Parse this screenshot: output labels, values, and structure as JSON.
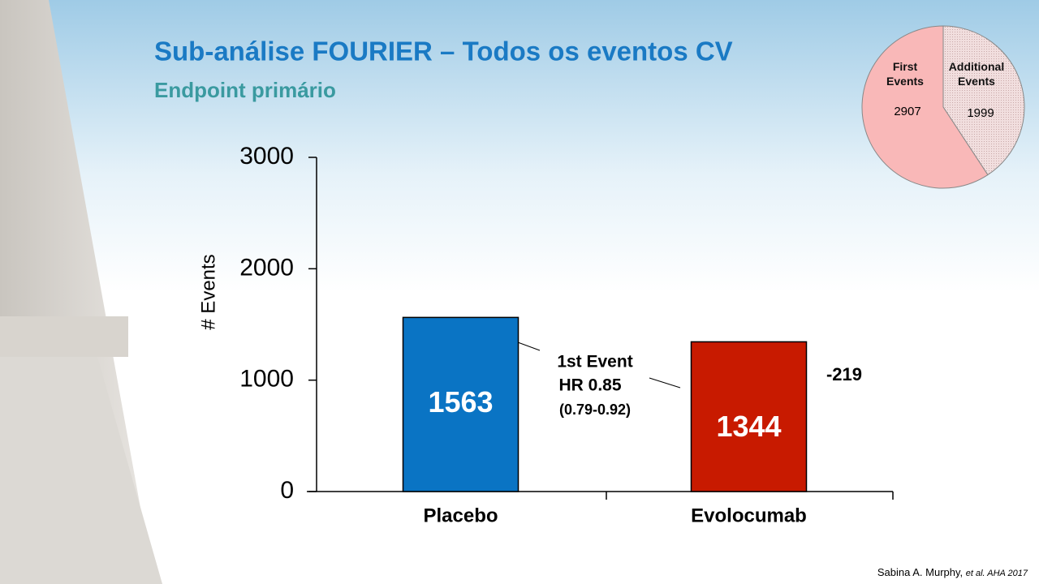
{
  "slide": {
    "title": "Sub-análise FOURIER – Todos os eventos CV",
    "subtitle": "Endpoint primário",
    "citation": "Sabina A. Murphy,",
    "citation_italic": "et al. AHA 2017"
  },
  "chart_data": [
    {
      "type": "bar",
      "ylabel": "# Events",
      "categories": [
        "Placebo",
        "Evolocumab"
      ],
      "series": [
        {
          "colors": [
            "#0a74c4",
            "#c81a00"
          ],
          "values": [
            1563,
            1344
          ]
        }
      ],
      "ylim": [
        0,
        3000
      ],
      "yticks": [
        0,
        1000,
        2000,
        3000
      ],
      "annotations": [
        "1st Event",
        "HR 0.85",
        "(0.79-0.92)",
        "-219"
      ]
    },
    {
      "type": "pie",
      "categories": [
        "First Events",
        "Additional Events"
      ],
      "values": [
        2907,
        1999
      ],
      "colors": [
        "#f9b8b8",
        "#f1dede"
      ]
    }
  ]
}
